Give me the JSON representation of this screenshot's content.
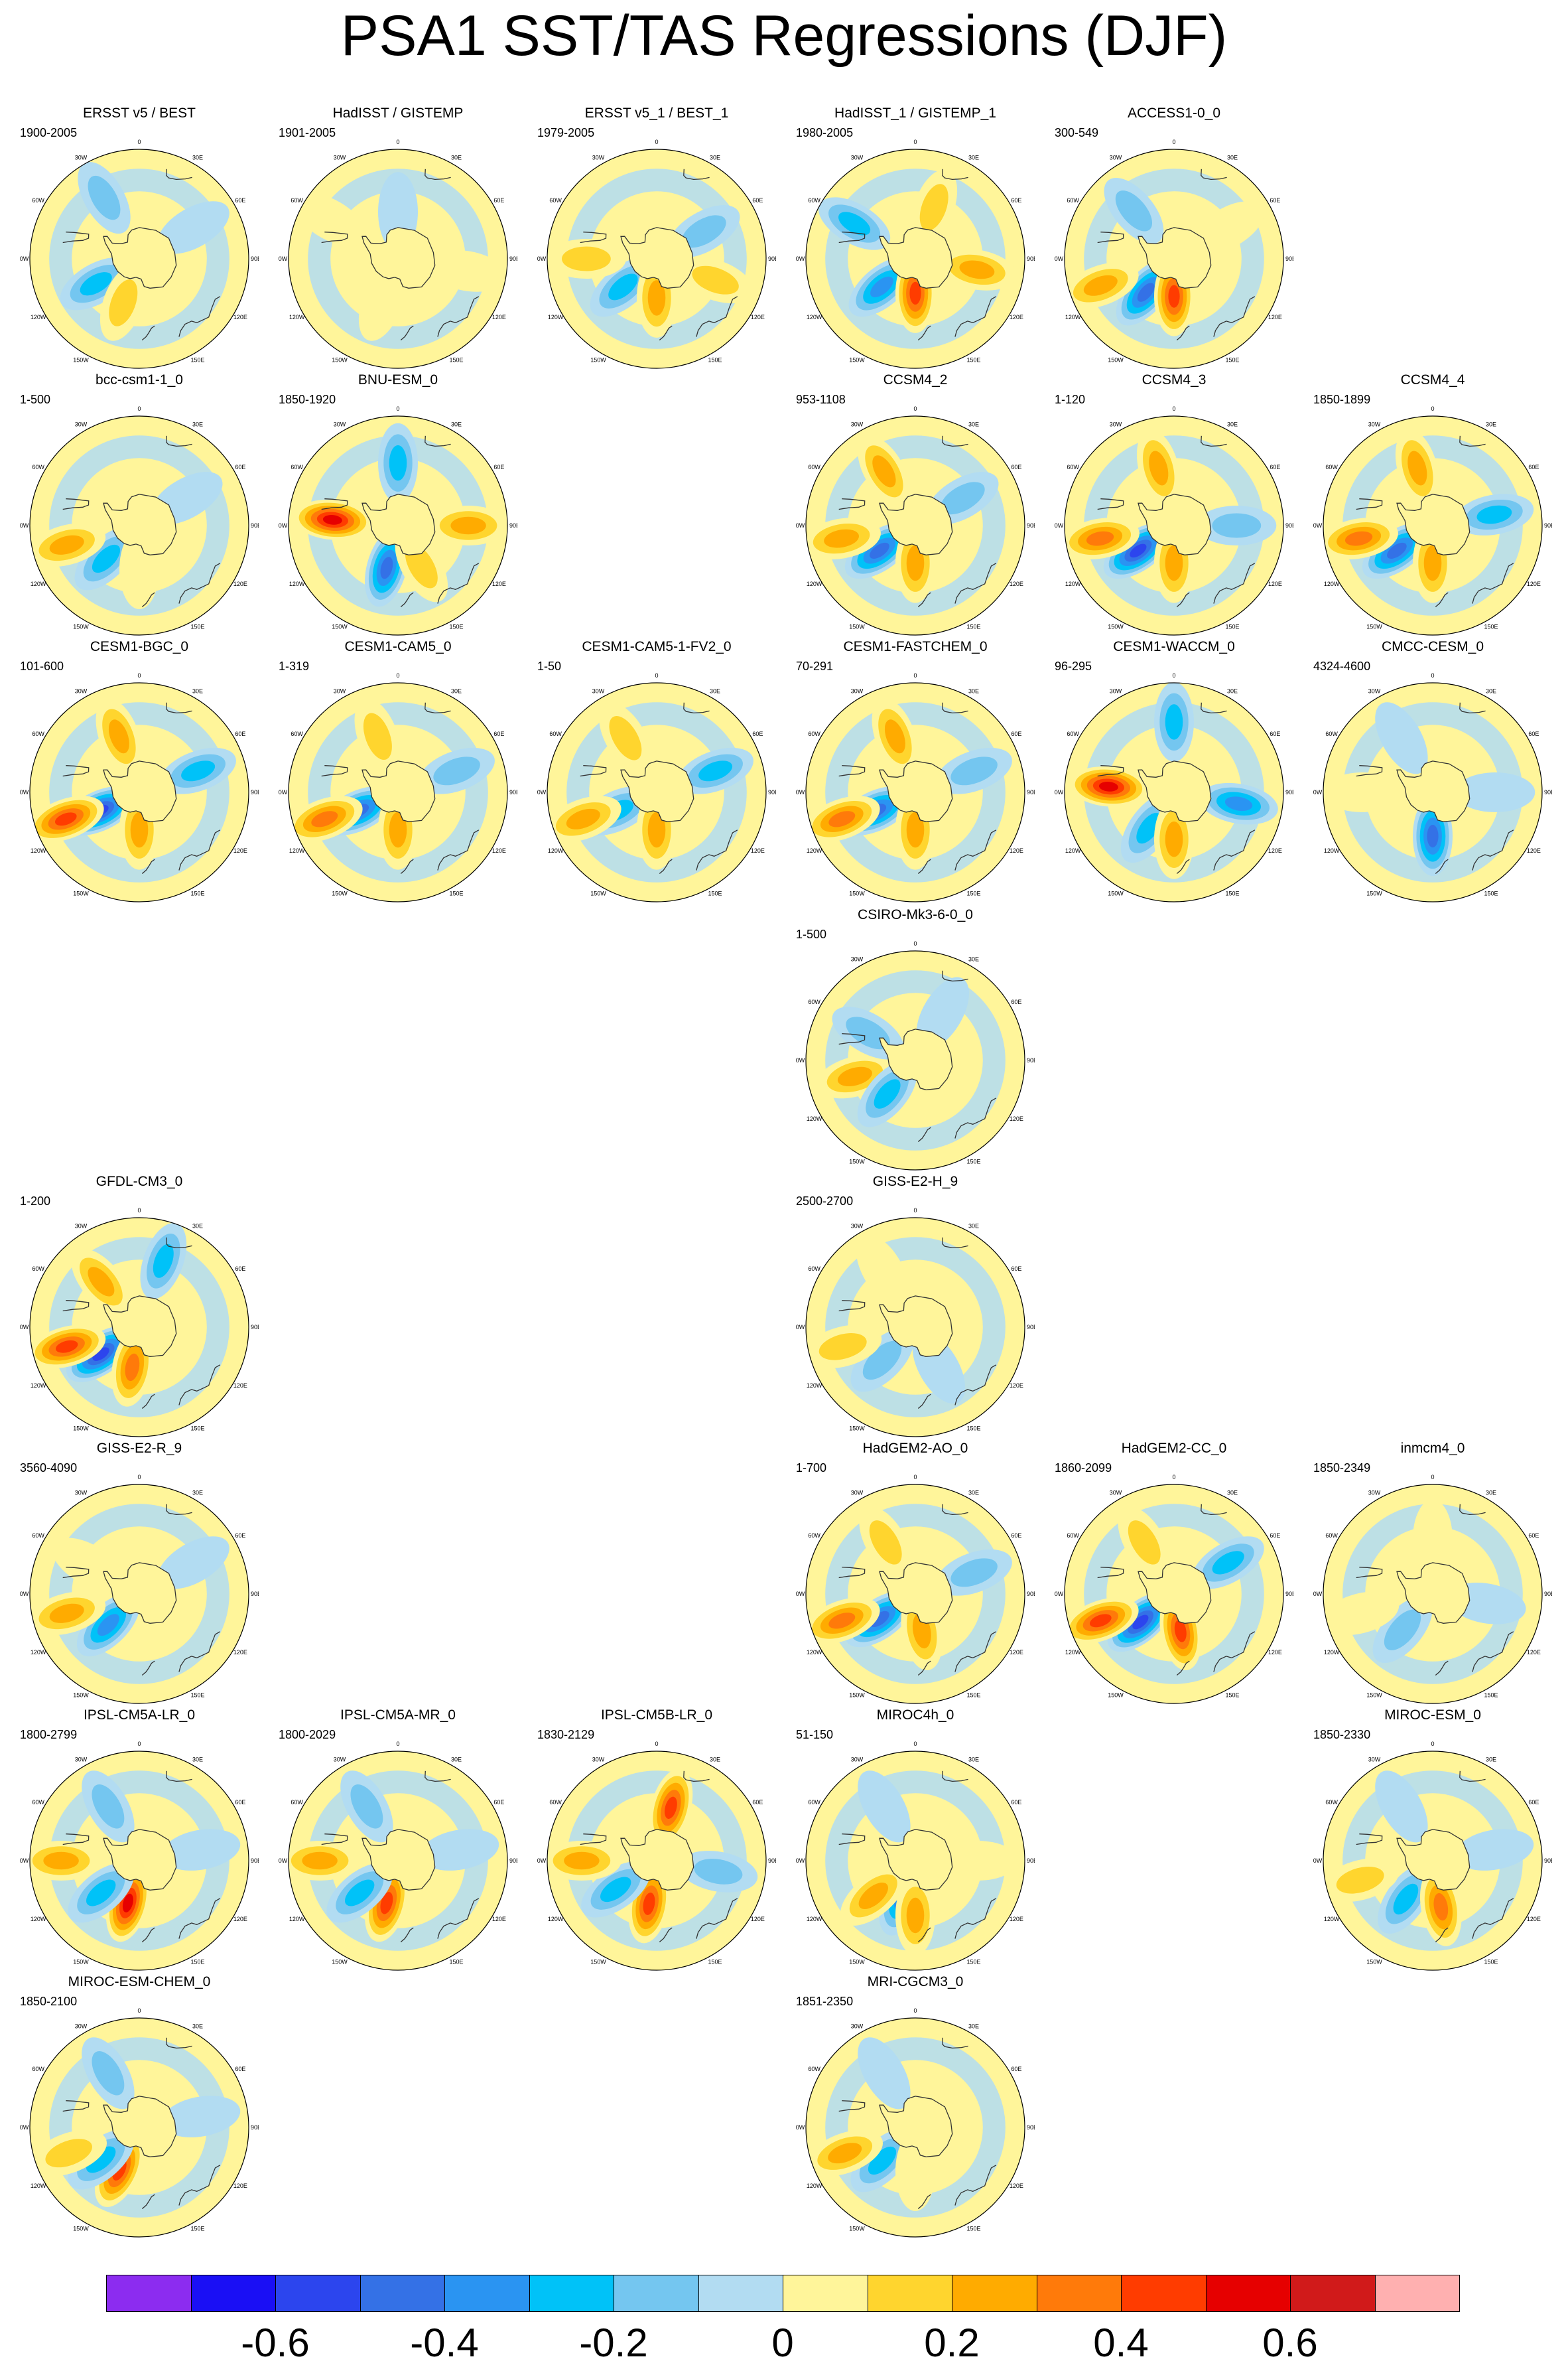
{
  "title": "PSA1 SST/TAS Regressions (DJF)",
  "map_labels": {
    "top": "0",
    "right_top": "30E",
    "right_mid": "60E",
    "right": "90E",
    "right_low": "120E",
    "right_bot": "150E",
    "bottom": "180",
    "left_bot": "150W",
    "left_low": "120W",
    "left": "90W",
    "left_mid": "60W",
    "left_top": "30W"
  },
  "panels": [
    {
      "title": "ERSST v5 / BEST",
      "period": "1900-2005",
      "row": 0,
      "col": 0,
      "anomalies": [
        {
          "lon": 240,
          "lat": -58,
          "value": -0.3
        },
        {
          "lon": 200,
          "lat": -60,
          "value": 0.2
        },
        {
          "lon": 330,
          "lat": -45,
          "value": -0.2
        },
        {
          "lon": 60,
          "lat": -50,
          "value": -0.15
        }
      ]
    },
    {
      "title": "HadISST / GISTEMP",
      "period": "1901-2005",
      "row": 0,
      "col": 1,
      "anomalies": [
        {
          "lon": 200,
          "lat": -60,
          "value": 0.15
        },
        {
          "lon": 100,
          "lat": -45,
          "value": 0.15
        },
        {
          "lon": 300,
          "lat": -40,
          "value": 0.1
        },
        {
          "lon": 0,
          "lat": -60,
          "value": -0.1
        }
      ]
    },
    {
      "title": "ERSST v5_1 / BEST_1",
      "period": "1979-2005",
      "row": 0,
      "col": 2,
      "anomalies": [
        {
          "lon": 230,
          "lat": -62,
          "value": -0.35
        },
        {
          "lon": 180,
          "lat": -65,
          "value": 0.35
        },
        {
          "lon": 270,
          "lat": -45,
          "value": 0.2
        },
        {
          "lon": 110,
          "lat": -50,
          "value": 0.2
        },
        {
          "lon": 60,
          "lat": -55,
          "value": -0.2
        }
      ]
    },
    {
      "title": "HadISST_1 / GISTEMP_1",
      "period": "1980-2005",
      "row": 0,
      "col": 3,
      "anomalies": [
        {
          "lon": 230,
          "lat": -62,
          "value": -0.4
        },
        {
          "lon": 180,
          "lat": -68,
          "value": 0.45
        },
        {
          "lon": 300,
          "lat": -45,
          "value": -0.3
        },
        {
          "lon": 100,
          "lat": -50,
          "value": 0.25
        },
        {
          "lon": 20,
          "lat": -55,
          "value": 0.2
        }
      ]
    },
    {
      "title": "ACCESS1-0_0",
      "period": "300-549",
      "row": 0,
      "col": 4,
      "anomalies": [
        {
          "lon": 220,
          "lat": -62,
          "value": -0.5
        },
        {
          "lon": 180,
          "lat": -66,
          "value": 0.5
        },
        {
          "lon": 250,
          "lat": -40,
          "value": 0.3
        },
        {
          "lon": 60,
          "lat": -50,
          "value": 0.15
        },
        {
          "lon": 320,
          "lat": -50,
          "value": -0.2
        }
      ]
    },
    {
      "title": "bcc-csm1-1_0",
      "period": "1-500",
      "row": 1,
      "col": 0,
      "anomalies": [
        {
          "lon": 225,
          "lat": -60,
          "value": -0.35
        },
        {
          "lon": 255,
          "lat": -42,
          "value": 0.25
        },
        {
          "lon": 180,
          "lat": -62,
          "value": 0.15
        },
        {
          "lon": 60,
          "lat": -55,
          "value": -0.15
        }
      ]
    },
    {
      "title": "BNU-ESM_0",
      "period": "1850-1920",
      "row": 1,
      "col": 1,
      "anomalies": [
        {
          "lon": 275,
          "lat": -48,
          "value": 0.55
        },
        {
          "lon": 195,
          "lat": -62,
          "value": -0.5
        },
        {
          "lon": 90,
          "lat": -45,
          "value": 0.3
        },
        {
          "lon": 0,
          "lat": -50,
          "value": -0.25
        },
        {
          "lon": 150,
          "lat": -60,
          "value": 0.2
        }
      ]
    },
    {
      "title": "CCSM4_2",
      "period": "953-1108",
      "row": 1,
      "col": 3,
      "anomalies": [
        {
          "lon": 235,
          "lat": -62,
          "value": -0.45
        },
        {
          "lon": 260,
          "lat": -42,
          "value": 0.35
        },
        {
          "lon": 180,
          "lat": -66,
          "value": 0.3
        },
        {
          "lon": 330,
          "lat": -50,
          "value": 0.3
        },
        {
          "lon": 60,
          "lat": -55,
          "value": -0.2
        }
      ]
    },
    {
      "title": "CCSM4_3",
      "period": "1-120",
      "row": 1,
      "col": 4,
      "anomalies": [
        {
          "lon": 235,
          "lat": -62,
          "value": -0.55
        },
        {
          "lon": 260,
          "lat": -42,
          "value": 0.4
        },
        {
          "lon": 180,
          "lat": -66,
          "value": 0.35
        },
        {
          "lon": 345,
          "lat": -52,
          "value": 0.35
        },
        {
          "lon": 90,
          "lat": -50,
          "value": -0.2
        }
      ]
    },
    {
      "title": "CCSM4_4",
      "period": "1850-1899",
      "row": 1,
      "col": 5,
      "anomalies": [
        {
          "lon": 235,
          "lat": -62,
          "value": -0.5
        },
        {
          "lon": 260,
          "lat": -42,
          "value": 0.4
        },
        {
          "lon": 180,
          "lat": -66,
          "value": 0.3
        },
        {
          "lon": 345,
          "lat": -52,
          "value": 0.35
        },
        {
          "lon": 80,
          "lat": -50,
          "value": -0.25
        }
      ]
    },
    {
      "title": "CESM1-BGC_0",
      "period": "101-600",
      "row": 2,
      "col": 0,
      "anomalies": [
        {
          "lon": 245,
          "lat": -62,
          "value": -0.55
        },
        {
          "lon": 250,
          "lat": -40,
          "value": 0.45
        },
        {
          "lon": 180,
          "lat": -66,
          "value": 0.3
        },
        {
          "lon": 340,
          "lat": -52,
          "value": 0.3
        },
        {
          "lon": 70,
          "lat": -50,
          "value": -0.25
        }
      ]
    },
    {
      "title": "CESM1-CAM5_0",
      "period": "1-319",
      "row": 2,
      "col": 1,
      "anomalies": [
        {
          "lon": 245,
          "lat": -62,
          "value": -0.45
        },
        {
          "lon": 250,
          "lat": -40,
          "value": 0.4
        },
        {
          "lon": 180,
          "lat": -66,
          "value": 0.25
        },
        {
          "lon": 340,
          "lat": -52,
          "value": 0.2
        },
        {
          "lon": 70,
          "lat": -50,
          "value": -0.2
        }
      ]
    },
    {
      "title": "CESM1-CAM5-1-FV2_0",
      "period": "1-50",
      "row": 2,
      "col": 2,
      "anomalies": [
        {
          "lon": 245,
          "lat": -62,
          "value": -0.35
        },
        {
          "lon": 250,
          "lat": -40,
          "value": 0.35
        },
        {
          "lon": 180,
          "lat": -66,
          "value": 0.25
        },
        {
          "lon": 330,
          "lat": -50,
          "value": 0.2
        },
        {
          "lon": 70,
          "lat": -50,
          "value": -0.25
        }
      ]
    },
    {
      "title": "CESM1-FASTCHEM_0",
      "period": "70-291",
      "row": 2,
      "col": 3,
      "anomalies": [
        {
          "lon": 245,
          "lat": -62,
          "value": -0.5
        },
        {
          "lon": 250,
          "lat": -40,
          "value": 0.4
        },
        {
          "lon": 180,
          "lat": -66,
          "value": 0.3
        },
        {
          "lon": 340,
          "lat": -52,
          "value": 0.3
        },
        {
          "lon": 70,
          "lat": -50,
          "value": -0.2
        }
      ]
    },
    {
      "title": "CESM1-WACCM_0",
      "period": "96-295",
      "row": 2,
      "col": 4,
      "anomalies": [
        {
          "lon": 275,
          "lat": -48,
          "value": 0.6
        },
        {
          "lon": 215,
          "lat": -62,
          "value": -0.35
        },
        {
          "lon": 0,
          "lat": -45,
          "value": -0.3
        },
        {
          "lon": 180,
          "lat": -60,
          "value": 0.3
        },
        {
          "lon": 100,
          "lat": -48,
          "value": -0.4
        }
      ]
    },
    {
      "title": "CMCC-CESM_0",
      "period": "4324-4600",
      "row": 2,
      "col": 5,
      "anomalies": [
        {
          "lon": 180,
          "lat": -62,
          "value": -0.45
        },
        {
          "lon": 270,
          "lat": -45,
          "value": 0.15
        },
        {
          "lon": 330,
          "lat": -50,
          "value": -0.15
        },
        {
          "lon": 90,
          "lat": -50,
          "value": -0.15
        }
      ]
    },
    {
      "title": "CSIRO-Mk3-6-0_0",
      "period": "1-500",
      "row": 3,
      "col": 3,
      "anomalies": [
        {
          "lon": 255,
          "lat": -50,
          "value": 0.3
        },
        {
          "lon": 220,
          "lat": -62,
          "value": -0.3
        },
        {
          "lon": 300,
          "lat": -55,
          "value": -0.2
        },
        {
          "lon": 30,
          "lat": -55,
          "value": -0.15
        }
      ]
    },
    {
      "title": "GFDL-CM3_0",
      "period": "1-200",
      "row": 4,
      "col": 0,
      "anomalies": [
        {
          "lon": 235,
          "lat": -60,
          "value": -0.55
        },
        {
          "lon": 255,
          "lat": -42,
          "value": 0.45
        },
        {
          "lon": 190,
          "lat": -64,
          "value": 0.4
        },
        {
          "lon": 320,
          "lat": -52,
          "value": 0.25
        },
        {
          "lon": 20,
          "lat": -45,
          "value": -0.25
        }
      ]
    },
    {
      "title": "GISS-E2-H_9",
      "period": "2500-2700",
      "row": 4,
      "col": 3,
      "anomalies": [
        {
          "lon": 225,
          "lat": -60,
          "value": -0.2
        },
        {
          "lon": 255,
          "lat": -42,
          "value": 0.2
        },
        {
          "lon": 150,
          "lat": -60,
          "value": -0.15
        },
        {
          "lon": 330,
          "lat": -48,
          "value": 0.15
        }
      ]
    },
    {
      "title": "GISS-E2-R_9",
      "period": "3560-4090",
      "row": 5,
      "col": 0,
      "anomalies": [
        {
          "lon": 225,
          "lat": -62,
          "value": -0.4
        },
        {
          "lon": 255,
          "lat": -42,
          "value": 0.25
        },
        {
          "lon": 300,
          "lat": -52,
          "value": 0.15
        },
        {
          "lon": 60,
          "lat": -50,
          "value": -0.15
        }
      ]
    },
    {
      "title": "HadGEM2-AO_0",
      "period": "1-700",
      "row": 5,
      "col": 3,
      "anomalies": [
        {
          "lon": 235,
          "lat": -62,
          "value": -0.5
        },
        {
          "lon": 250,
          "lat": -40,
          "value": 0.4
        },
        {
          "lon": 170,
          "lat": -66,
          "value": 0.35
        },
        {
          "lon": 330,
          "lat": -52,
          "value": 0.2
        },
        {
          "lon": 70,
          "lat": -50,
          "value": -0.2
        }
      ]
    },
    {
      "title": "HadGEM2-CC_0",
      "period": "1860-2099",
      "row": 5,
      "col": 4,
      "anomalies": [
        {
          "lon": 230,
          "lat": -62,
          "value": -0.55
        },
        {
          "lon": 250,
          "lat": -40,
          "value": 0.45
        },
        {
          "lon": 170,
          "lat": -66,
          "value": 0.45
        },
        {
          "lon": 330,
          "lat": -52,
          "value": 0.2
        },
        {
          "lon": 60,
          "lat": -50,
          "value": -0.3
        }
      ]
    },
    {
      "title": "inmcm4_0",
      "period": "1850-2349",
      "row": 5,
      "col": 5,
      "anomalies": [
        {
          "lon": 220,
          "lat": -60,
          "value": -0.2
        },
        {
          "lon": 255,
          "lat": -42,
          "value": 0.15
        },
        {
          "lon": 0,
          "lat": -55,
          "value": 0.15
        },
        {
          "lon": 100,
          "lat": -55,
          "value": -0.15
        }
      ]
    },
    {
      "title": "IPSL-CM5A-LR_0",
      "period": "1800-2799",
      "row": 6,
      "col": 0,
      "anomalies": [
        {
          "lon": 195,
          "lat": -62,
          "value": 0.6
        },
        {
          "lon": 230,
          "lat": -58,
          "value": -0.35
        },
        {
          "lon": 270,
          "lat": -40,
          "value": 0.25
        },
        {
          "lon": 330,
          "lat": -50,
          "value": -0.2
        },
        {
          "lon": 80,
          "lat": -50,
          "value": -0.15
        }
      ]
    },
    {
      "title": "IPSL-CM5A-MR_0",
      "period": "1800-2029",
      "row": 6,
      "col": 1,
      "anomalies": [
        {
          "lon": 195,
          "lat": -62,
          "value": 0.5
        },
        {
          "lon": 230,
          "lat": -58,
          "value": -0.35
        },
        {
          "lon": 270,
          "lat": -40,
          "value": 0.25
        },
        {
          "lon": 330,
          "lat": -50,
          "value": -0.2
        },
        {
          "lon": 80,
          "lat": -50,
          "value": -0.15
        }
      ]
    },
    {
      "title": "IPSL-CM5B-LR_0",
      "period": "1830-2129",
      "row": 6,
      "col": 2,
      "anomalies": [
        {
          "lon": 190,
          "lat": -62,
          "value": 0.45
        },
        {
          "lon": 235,
          "lat": -58,
          "value": -0.35
        },
        {
          "lon": 15,
          "lat": -55,
          "value": 0.45
        },
        {
          "lon": 270,
          "lat": -42,
          "value": 0.25
        },
        {
          "lon": 100,
          "lat": -50,
          "value": -0.2
        }
      ]
    },
    {
      "title": "MIROC4h_0",
      "period": "51-150",
      "row": 6,
      "col": 3,
      "anomalies": [
        {
          "lon": 200,
          "lat": -65,
          "value": -0.4
        },
        {
          "lon": 230,
          "lat": -55,
          "value": 0.35
        },
        {
          "lon": 180,
          "lat": -55,
          "value": 0.3
        },
        {
          "lon": 330,
          "lat": -50,
          "value": -0.15
        },
        {
          "lon": 90,
          "lat": -50,
          "value": 0.1
        }
      ]
    },
    {
      "title": "MIROC-ESM_0",
      "period": "1850-2330",
      "row": 6,
      "col": 5,
      "anomalies": [
        {
          "lon": 215,
          "lat": -60,
          "value": -0.35
        },
        {
          "lon": 170,
          "lat": -60,
          "value": 0.4
        },
        {
          "lon": 255,
          "lat": -42,
          "value": 0.2
        },
        {
          "lon": 330,
          "lat": -50,
          "value": -0.15
        },
        {
          "lon": 80,
          "lat": -50,
          "value": -0.15
        }
      ]
    },
    {
      "title": "MIROC-ESM-CHEM_0",
      "period": "1850-2100",
      "row": 7,
      "col": 0,
      "anomalies": [
        {
          "lon": 205,
          "lat": -60,
          "value": 0.45
        },
        {
          "lon": 230,
          "lat": -58,
          "value": -0.3
        },
        {
          "lon": 250,
          "lat": -42,
          "value": 0.2
        },
        {
          "lon": 330,
          "lat": -50,
          "value": -0.2
        },
        {
          "lon": 80,
          "lat": -50,
          "value": -0.15
        }
      ]
    },
    {
      "title": "MRI-CGCM3_0",
      "period": "1851-2350",
      "row": 7,
      "col": 3,
      "anomalies": [
        {
          "lon": 225,
          "lat": -60,
          "value": -0.35
        },
        {
          "lon": 250,
          "lat": -42,
          "value": 0.25
        },
        {
          "lon": 180,
          "lat": -62,
          "value": 0.15
        },
        {
          "lon": 330,
          "lat": -50,
          "value": -0.15
        }
      ]
    }
  ],
  "colorbar": {
    "colors": [
      "#8c2cf0",
      "#1a0ff5",
      "#2c45ee",
      "#3471e6",
      "#2a94f2",
      "#00c2f8",
      "#74c6f0",
      "#b2dcf2",
      "#fff59a",
      "#ffd52e",
      "#ffab00",
      "#ff7a0a",
      "#ff3c00",
      "#e60000",
      "#d11a1a",
      "#ffb0b0"
    ],
    "tick_labels": [
      "-0.6",
      "-0.4",
      "-0.2",
      "0",
      "0.2",
      "0.4",
      "0.6"
    ],
    "tick_values": [
      -0.6,
      -0.4,
      -0.2,
      0,
      0.2,
      0.4,
      0.6
    ],
    "levels": [
      -0.7,
      -0.6,
      -0.5,
      -0.4,
      -0.3,
      -0.2,
      -0.1,
      0,
      0.1,
      0.2,
      0.3,
      0.4,
      0.5,
      0.6,
      0.7
    ]
  }
}
